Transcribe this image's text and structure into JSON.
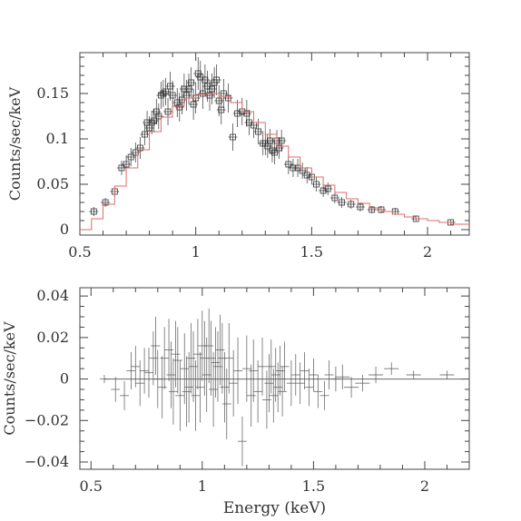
{
  "chart_data": [
    {
      "type": "scatter",
      "xlim": [
        0.5,
        2.18
      ],
      "ylim": [
        -0.006,
        0.195
      ],
      "xticks": [
        0.5,
        1,
        1.5,
        2
      ],
      "xtick_labels": [
        "0.5",
        "1",
        "1.5",
        "2"
      ],
      "yticks": [
        0,
        0.05,
        0.1,
        0.15
      ],
      "ytick_labels": [
        "0",
        "0.05",
        "0.1",
        "0.15"
      ],
      "ylabel": "Counts/sec/keV",
      "xlabel": "",
      "series": [
        {
          "kind": "data-with-errors",
          "color": "#333333",
          "x": [
            0.56,
            0.61,
            0.65,
            0.68,
            0.7,
            0.72,
            0.74,
            0.76,
            0.78,
            0.79,
            0.8,
            0.81,
            0.82,
            0.83,
            0.84,
            0.85,
            0.86,
            0.87,
            0.88,
            0.89,
            0.9,
            0.92,
            0.93,
            0.94,
            0.95,
            0.96,
            0.97,
            0.98,
            0.99,
            1.0,
            1.01,
            1.02,
            1.03,
            1.04,
            1.05,
            1.06,
            1.07,
            1.08,
            1.09,
            1.1,
            1.11,
            1.12,
            1.14,
            1.16,
            1.18,
            1.2,
            1.22,
            1.23,
            1.25,
            1.27,
            1.29,
            1.3,
            1.31,
            1.32,
            1.33,
            1.34,
            1.35,
            1.36,
            1.37,
            1.4,
            1.42,
            1.44,
            1.46,
            1.48,
            1.5,
            1.52,
            1.55,
            1.57,
            1.6,
            1.63,
            1.67,
            1.71,
            1.76,
            1.8,
            1.86,
            1.95,
            2.1
          ],
          "y": [
            0.02,
            0.03,
            0.042,
            0.068,
            0.072,
            0.08,
            0.085,
            0.09,
            0.105,
            0.118,
            0.112,
            0.118,
            0.12,
            0.13,
            0.125,
            0.148,
            0.15,
            0.152,
            0.13,
            0.158,
            0.148,
            0.14,
            0.135,
            0.143,
            0.155,
            0.148,
            0.155,
            0.162,
            0.138,
            0.145,
            0.172,
            0.168,
            0.15,
            0.165,
            0.158,
            0.148,
            0.155,
            0.162,
            0.165,
            0.142,
            0.132,
            0.15,
            0.145,
            0.102,
            0.128,
            0.13,
            0.128,
            0.118,
            0.115,
            0.108,
            0.095,
            0.095,
            0.092,
            0.098,
            0.087,
            0.085,
            0.098,
            0.09,
            0.098,
            0.072,
            0.068,
            0.068,
            0.065,
            0.06,
            0.058,
            0.05,
            0.043,
            0.045,
            0.035,
            0.03,
            0.028,
            0.025,
            0.022,
            0.022,
            0.02,
            0.012,
            0.008
          ],
          "yerr": [
            0.005,
            0.005,
            0.006,
            0.008,
            0.01,
            0.01,
            0.011,
            0.012,
            0.012,
            0.013,
            0.013,
            0.013,
            0.013,
            0.014,
            0.014,
            0.015,
            0.015,
            0.015,
            0.015,
            0.016,
            0.016,
            0.016,
            0.016,
            0.016,
            0.017,
            0.017,
            0.017,
            0.017,
            0.017,
            0.017,
            0.018,
            0.018,
            0.017,
            0.017,
            0.017,
            0.017,
            0.017,
            0.017,
            0.017,
            0.017,
            0.016,
            0.016,
            0.016,
            0.015,
            0.015,
            0.015,
            0.015,
            0.014,
            0.014,
            0.014,
            0.013,
            0.013,
            0.013,
            0.013,
            0.013,
            0.013,
            0.012,
            0.012,
            0.012,
            0.011,
            0.01,
            0.01,
            0.009,
            0.009,
            0.008,
            0.008,
            0.007,
            0.007,
            0.006,
            0.006,
            0.005,
            0.005,
            0.004,
            0.004,
            0.004,
            0.003,
            0.003
          ]
        },
        {
          "kind": "model-step",
          "color": "#e06a6a",
          "x": [
            0.5,
            0.55,
            0.6,
            0.65,
            0.7,
            0.75,
            0.8,
            0.85,
            0.9,
            0.95,
            1.0,
            1.05,
            1.1,
            1.15,
            1.2,
            1.25,
            1.3,
            1.35,
            1.4,
            1.45,
            1.5,
            1.55,
            1.6,
            1.65,
            1.7,
            1.75,
            1.8,
            1.85,
            1.9,
            1.95,
            2.0,
            2.05,
            2.1,
            2.18
          ],
          "y": [
            0.0,
            0.012,
            0.028,
            0.048,
            0.068,
            0.088,
            0.108,
            0.124,
            0.136,
            0.145,
            0.149,
            0.15,
            0.147,
            0.14,
            0.13,
            0.118,
            0.105,
            0.092,
            0.08,
            0.068,
            0.058,
            0.049,
            0.041,
            0.034,
            0.029,
            0.024,
            0.02,
            0.017,
            0.014,
            0.012,
            0.01,
            0.008,
            0.006,
            0.004
          ]
        }
      ]
    },
    {
      "type": "scatter",
      "xlim": [
        0.45,
        2.2
      ],
      "ylim": [
        -0.0435,
        0.044
      ],
      "xticks": [
        0.5,
        1,
        1.5,
        2
      ],
      "xtick_labels": [
        "0.5",
        "1",
        "1.5",
        "2"
      ],
      "yticks": [
        -0.04,
        -0.02,
        0,
        0.02,
        0.04
      ],
      "ytick_labels": [
        "−0.04",
        "−0.02",
        "0",
        "0.02",
        "0.04"
      ],
      "ylabel": "Counts/sec/keV",
      "xlabel": "Energy (keV)",
      "series": [
        {
          "kind": "residual-crosses",
          "color": "#555555",
          "x": [
            0.56,
            0.61,
            0.65,
            0.68,
            0.7,
            0.72,
            0.74,
            0.76,
            0.78,
            0.79,
            0.8,
            0.82,
            0.83,
            0.85,
            0.86,
            0.87,
            0.88,
            0.89,
            0.9,
            0.92,
            0.93,
            0.94,
            0.95,
            0.96,
            0.97,
            0.98,
            0.99,
            1.0,
            1.01,
            1.02,
            1.03,
            1.04,
            1.05,
            1.06,
            1.07,
            1.08,
            1.09,
            1.1,
            1.11,
            1.12,
            1.14,
            1.16,
            1.18,
            1.2,
            1.22,
            1.23,
            1.25,
            1.27,
            1.29,
            1.3,
            1.31,
            1.32,
            1.33,
            1.34,
            1.35,
            1.36,
            1.37,
            1.4,
            1.42,
            1.44,
            1.46,
            1.48,
            1.5,
            1.52,
            1.55,
            1.57,
            1.6,
            1.63,
            1.67,
            1.72,
            1.78,
            1.85,
            1.95,
            2.1
          ],
          "y": [
            0.0,
            -0.005,
            -0.008,
            0.004,
            0.006,
            -0.002,
            0.004,
            0.003,
            0.01,
            0.016,
            0.0,
            -0.004,
            0.01,
            0.014,
            0.002,
            -0.006,
            0.012,
            0.009,
            -0.008,
            0.005,
            -0.006,
            -0.004,
            0.01,
            0.006,
            -0.008,
            0.012,
            -0.004,
            0.016,
            0.01,
            0.002,
            0.016,
            0.01,
            -0.005,
            0.008,
            0.006,
            0.014,
            0.01,
            -0.004,
            -0.012,
            0.01,
            -0.002,
            0.004,
            -0.03,
            0.005,
            -0.008,
            0.004,
            -0.006,
            0.006,
            -0.01,
            -0.002,
            0.006,
            -0.008,
            0.002,
            -0.004,
            0.004,
            -0.006,
            0.006,
            -0.002,
            0.002,
            -0.002,
            0.004,
            -0.004,
            0.002,
            -0.006,
            -0.008,
            0.002,
            0.0,
            0.001,
            -0.004,
            -0.002,
            0.002,
            0.005,
            0.002,
            0.002
          ],
          "yerr": [
            0.002,
            0.006,
            0.007,
            0.009,
            0.01,
            0.011,
            0.011,
            0.012,
            0.013,
            0.014,
            0.014,
            0.015,
            0.015,
            0.015,
            0.016,
            0.016,
            0.016,
            0.016,
            0.017,
            0.017,
            0.017,
            0.017,
            0.017,
            0.017,
            0.017,
            0.017,
            0.017,
            0.017,
            0.018,
            0.018,
            0.018,
            0.018,
            0.018,
            0.017,
            0.017,
            0.017,
            0.017,
            0.017,
            0.017,
            0.017,
            0.016,
            0.016,
            0.012,
            0.016,
            0.015,
            0.015,
            0.015,
            0.014,
            0.014,
            0.014,
            0.013,
            0.013,
            0.013,
            0.012,
            0.012,
            0.012,
            0.012,
            0.011,
            0.01,
            0.01,
            0.009,
            0.009,
            0.008,
            0.008,
            0.007,
            0.007,
            0.006,
            0.006,
            0.005,
            0.004,
            0.004,
            0.003,
            0.002,
            0.002
          ]
        }
      ]
    }
  ]
}
